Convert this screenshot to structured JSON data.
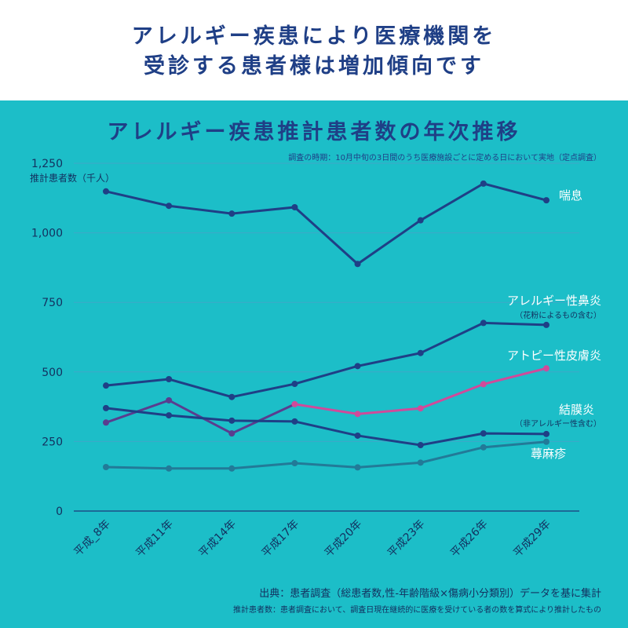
{
  "header": {
    "line1": "アレルギー疾患により医療機関を",
    "line2": "受診する患者様は増加傾向です"
  },
  "notes": {
    "survey_timing": "調査の時期：10月中旬の3日間のうち医療施設ごとに定める日において実地（定点調査）",
    "source": "出典：患者調査（総患者数,性-年齢階級×傷病小分類別）データを基に集計",
    "definition": "推計患者数：患者調査において、調査日現在継続的に医療を受けている者の数を算式により推計したもの"
  },
  "colors": {
    "background_panel": "#1cbec8",
    "header_text": "#1f3f86",
    "gridline": "#3fa8c8",
    "axis_line": "#1d4e86"
  },
  "chart_data": {
    "type": "line",
    "title": "アレルギー疾患推計患者数の年次推移",
    "ylabel": "推計患者数（千人）",
    "xlabel": "",
    "categories": [
      "平成_8年",
      "平成11年",
      "平成14年",
      "平成17年",
      "平成20年",
      "平成23年",
      "平成26年",
      "平成29年"
    ],
    "ylim": [
      0,
      1250
    ],
    "yticks": [
      0,
      250,
      500,
      750,
      1000,
      1250
    ],
    "ytick_labels": [
      "0",
      "250",
      "500",
      "750",
      "1,000",
      "1,250"
    ],
    "grid": true,
    "series": [
      {
        "name": "喘息",
        "sublabel": "",
        "color": "#1f3f86",
        "values": [
          1149,
          1097,
          1069,
          1092,
          888,
          1045,
          1177,
          1117
        ]
      },
      {
        "name": "アレルギー性鼻炎",
        "sublabel": "（花粉によるもの含む）",
        "color": "#1f3f86",
        "values": [
          451,
          474,
          410,
          457,
          521,
          568,
          676,
          669
        ]
      },
      {
        "name": "アトピー性皮膚炎",
        "sublabel": "",
        "color": "#d04a9a",
        "highlight_from_index": 3,
        "base_color": "#5a3d8f",
        "values": [
          318,
          398,
          279,
          384,
          349,
          369,
          456,
          513
        ]
      },
      {
        "name": "結膜炎",
        "sublabel": "（非アレルギー性含む）",
        "color": "#1f3f86",
        "values": [
          370,
          344,
          325,
          322,
          271,
          237,
          279,
          277
        ]
      },
      {
        "name": "蕁麻疹",
        "sublabel": "",
        "color": "#227a98",
        "values": [
          158,
          153,
          153,
          172,
          157,
          174,
          229,
          249
        ]
      }
    ]
  }
}
